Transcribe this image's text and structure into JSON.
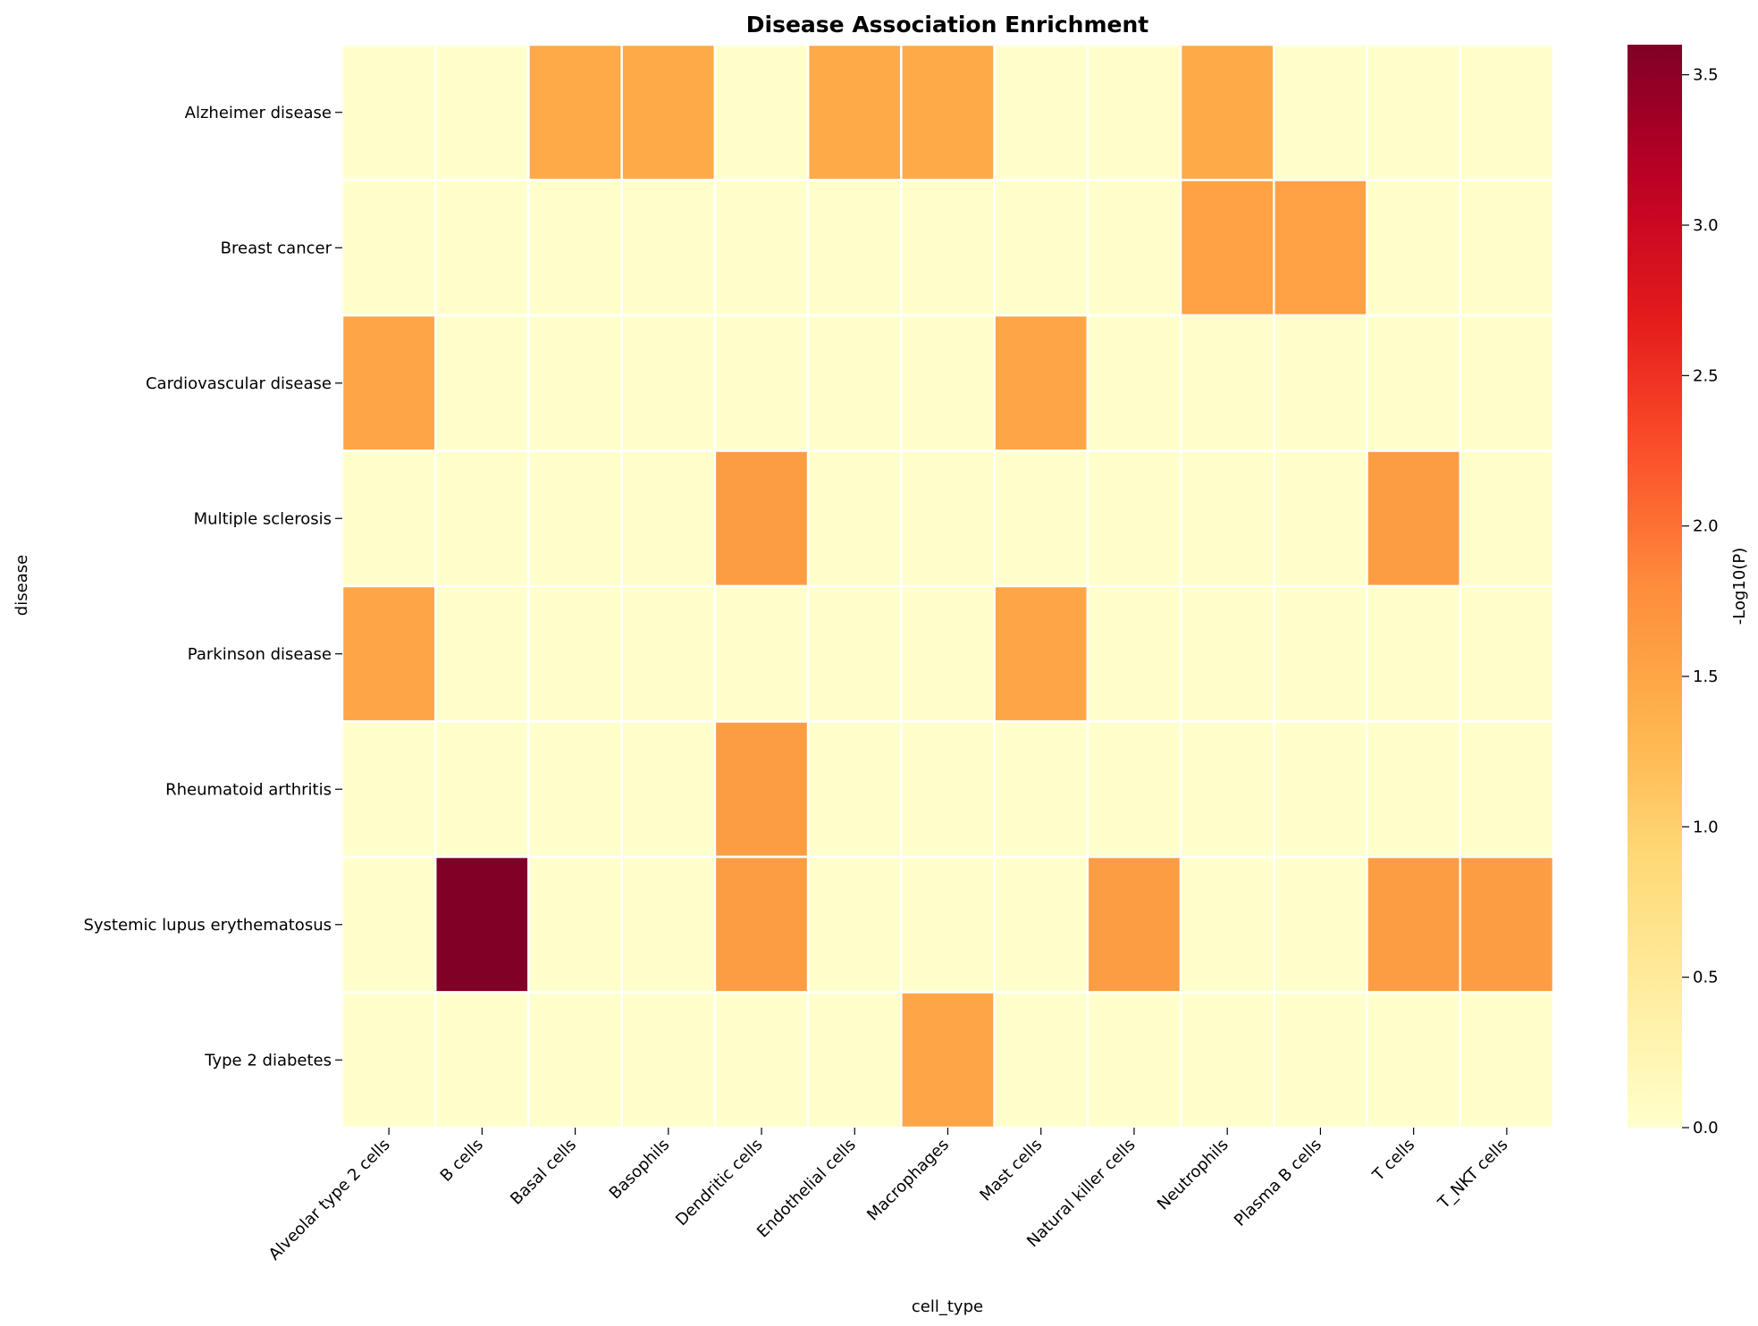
{
  "chart_data": {
    "type": "heatmap",
    "title": "Disease Association Enrichment",
    "xlabel": "cell_type",
    "ylabel": "disease",
    "colorbar_label": "-Log10(P)",
    "colormap": "YlOrRd",
    "vmin": 0,
    "vmax": 3.6,
    "colorbar_ticks": [
      "0.0",
      "0.5",
      "1.0",
      "1.5",
      "2.0",
      "2.5",
      "3.0",
      "3.5"
    ],
    "columns": [
      "Alveolar type 2 cells",
      "B cells",
      "Basal cells",
      "Basophils",
      "Dendritic cells",
      "Endothelial cells",
      "Macrophages",
      "Mast cells",
      "Natural killer cells",
      "Neutrophils",
      "Plasma B cells",
      "T cells",
      "T_NKT cells"
    ],
    "rows": [
      "Alzheimer disease",
      "Breast cancer",
      "Cardiovascular disease",
      "Multiple sclerosis",
      "Parkinson disease",
      "Rheumatoid arthritis",
      "Systemic lupus erythematosus",
      "Type 2 diabetes"
    ],
    "values": [
      [
        0,
        0,
        1.45,
        1.45,
        0,
        1.45,
        1.45,
        0,
        0,
        1.45,
        0,
        0,
        0
      ],
      [
        0,
        0,
        0,
        0,
        0,
        0,
        0,
        0,
        0,
        1.55,
        1.55,
        0,
        0
      ],
      [
        1.5,
        0,
        0,
        0,
        0,
        0,
        0,
        1.5,
        0,
        0,
        0,
        0,
        0
      ],
      [
        0,
        0,
        0,
        0,
        1.6,
        0,
        0,
        0,
        0,
        0,
        0,
        1.6,
        0
      ],
      [
        1.5,
        0,
        0,
        0,
        0,
        0,
        0,
        1.5,
        0,
        0,
        0,
        0,
        0
      ],
      [
        0,
        0,
        0,
        0,
        1.6,
        0,
        0,
        0,
        0,
        0,
        0,
        0,
        0
      ],
      [
        0,
        3.6,
        0,
        0,
        1.6,
        0,
        0,
        0,
        1.6,
        0,
        0,
        1.6,
        1.6
      ],
      [
        0,
        0,
        0,
        0,
        0,
        0,
        1.5,
        0,
        0,
        0,
        0,
        0,
        0
      ]
    ]
  }
}
